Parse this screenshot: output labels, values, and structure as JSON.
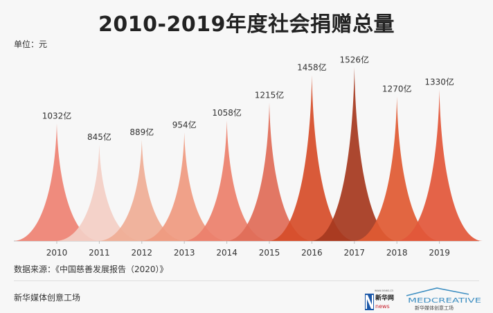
{
  "header": {
    "title": "2010-2019年度社会捐赠总量",
    "unit": "单位：元"
  },
  "chart_data": {
    "type": "area",
    "title": "2010-2019年度社会捐赠总量",
    "ylabel": "单位：元",
    "categories": [
      "2010",
      "2011",
      "2012",
      "2013",
      "2014",
      "2015",
      "2016",
      "2017",
      "2018",
      "2019"
    ],
    "values": [
      1032,
      845,
      889,
      954,
      1058,
      1215,
      1458,
      1526,
      1270,
      1330
    ],
    "value_labels": [
      "1032亿",
      "845亿",
      "889亿",
      "954亿",
      "1058亿",
      "1215亿",
      "1458亿",
      "1526亿",
      "1270亿",
      "1330亿"
    ],
    "ylim": [
      0,
      1550
    ],
    "grid": false,
    "colors": [
      "#ee8273",
      "#f3cfc5",
      "#efad96",
      "#ef9a80",
      "#ec806c",
      "#e06d58",
      "#d64e2a",
      "#a6391f",
      "#e05a33",
      "#e2573a"
    ]
  },
  "source": "数据来源：《中国慈善发展报告（2020）》",
  "footer": {
    "credit": "新华媒体创意工场",
    "logo_xinhua": "新华网",
    "logo_xinhua_sub": "news",
    "logo_url": "www.news.cn",
    "logo_media": "MEDCREATIVE",
    "logo_media_sub": "新华媒体创意工场"
  }
}
